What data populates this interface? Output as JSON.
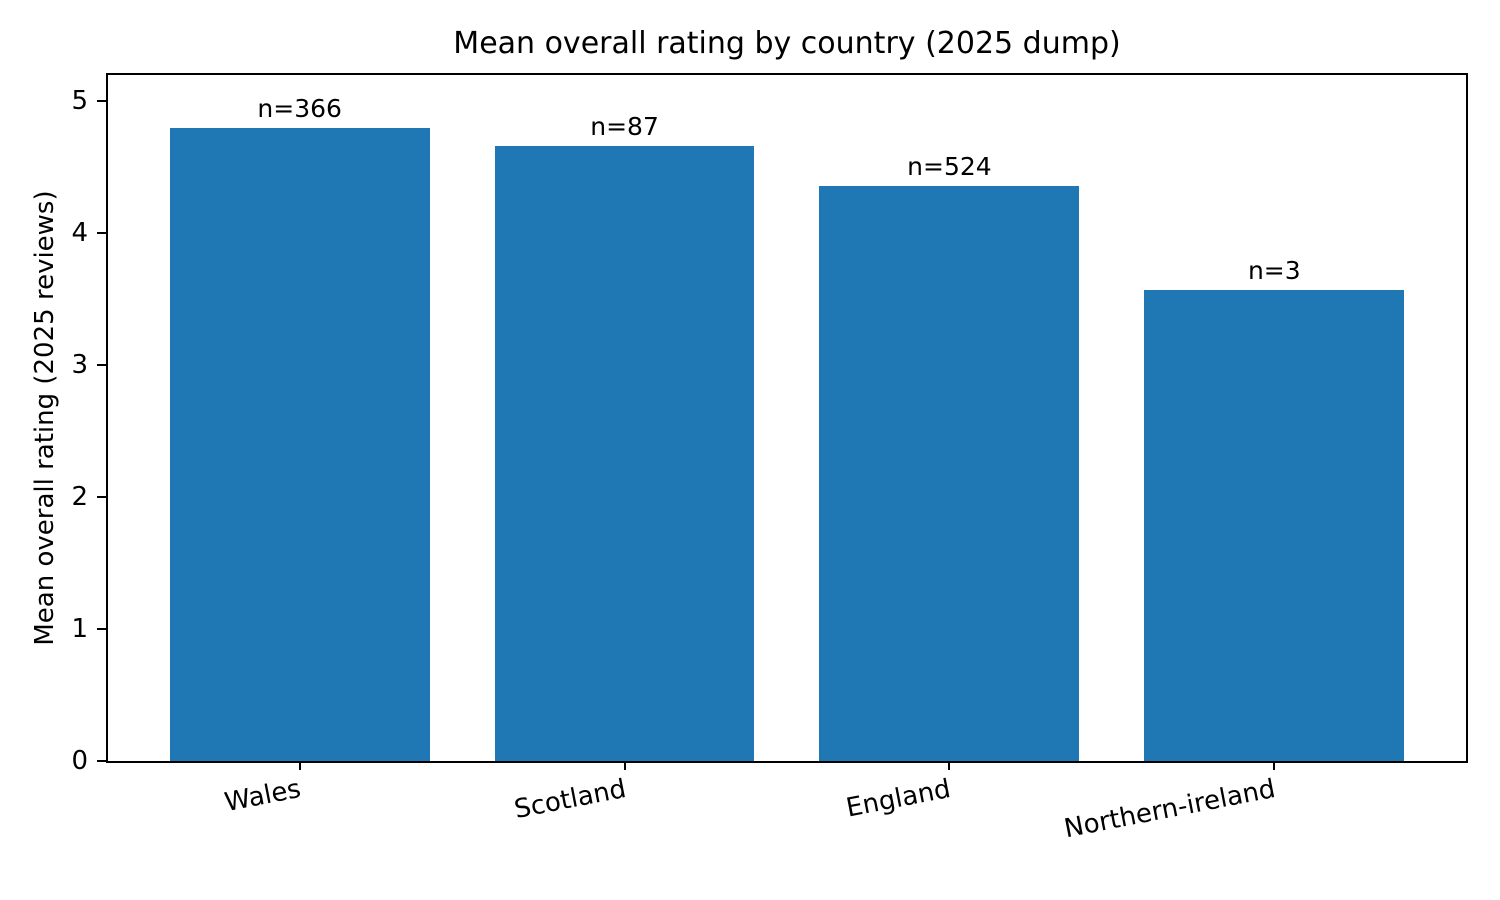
{
  "figure": {
    "background": "#ffffff"
  },
  "chart_data": {
    "type": "bar",
    "title": "Mean overall rating by country (2025 dump)",
    "xlabel": "",
    "ylabel": "Mean overall rating (2025 reviews)",
    "categories": [
      "Wales",
      "Scotland",
      "England",
      "Northern-ireland"
    ],
    "series": [
      {
        "name": "Mean overall rating",
        "values": [
          4.8,
          4.66,
          4.36,
          3.57
        ]
      }
    ],
    "annotations": [
      "n=366",
      "n=87",
      "n=524",
      "n=3"
    ],
    "sample_sizes": [
      366,
      87,
      524,
      3
    ],
    "ylim": [
      0,
      5.2
    ],
    "yticks": [
      0,
      1,
      2,
      3,
      4,
      5
    ],
    "xlim": [
      -0.59,
      3.59
    ],
    "bar_width_fraction": 0.8,
    "bar_color": "#1f77b4",
    "axis_color": "#000000",
    "grid": false,
    "legend": false,
    "xtick_rotation_deg": 11
  }
}
